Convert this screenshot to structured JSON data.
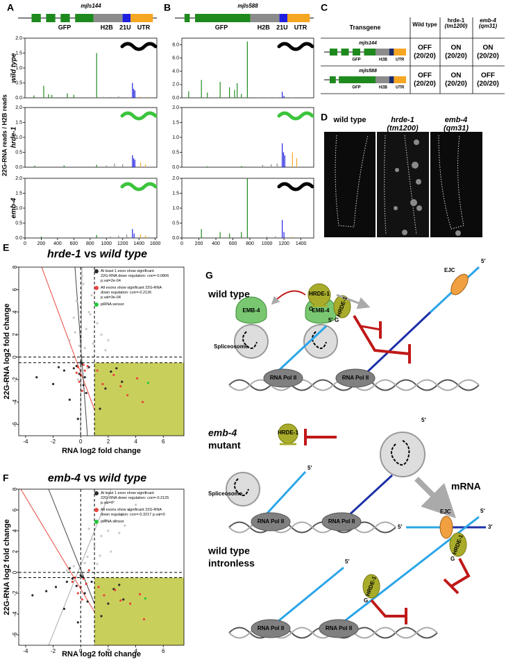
{
  "panel_labels": [
    "A",
    "B",
    "C",
    "D",
    "E",
    "F",
    "G"
  ],
  "panel_a": {
    "construct": "mjIs144",
    "y_axis_label": "22G-RNA reads / H2B reads",
    "series": [
      {
        "name": "GFP",
        "color": "#1e8a1e"
      },
      {
        "name": "H2B",
        "color": "#8c8c8c"
      },
      {
        "name": "21U",
        "color": "#1f1fe0"
      },
      {
        "name": "UTR",
        "color": "#f5a623"
      }
    ],
    "xlim": [
      0,
      1620
    ],
    "xticks": [
      0,
      200,
      400,
      600,
      800,
      1000,
      1200,
      1400,
      1600
    ],
    "rows": [
      {
        "label": "wild type",
        "worm_color": "#000000",
        "ylim": [
          0,
          2
        ],
        "yticks": [
          {
            "value": 0,
            "label": "0.0"
          },
          {
            "value": 0.5,
            "label": "0.5"
          },
          {
            "value": 1,
            "label": "1.0"
          },
          {
            "value": 1.5,
            "label": "1.5"
          },
          {
            "value": 2,
            "label": "2.0"
          }
        ],
        "data": [
          {
            "x": [
              110,
              230,
              290,
              330,
              520,
              600,
              880
            ],
            "values": [
              0.08,
              0.4,
              0.12,
              0.1,
              0.15,
              0.1,
              1.5
            ]
          },
          {
            "x": [
              960,
              1050,
              1150
            ],
            "values": [
              0.03,
              0.03,
              0.05
            ]
          },
          {
            "x": [
              1320,
              1335,
              1350
            ],
            "values": [
              0.5,
              0.3,
              0.25
            ]
          },
          {
            "x": [
              1420,
              1500
            ],
            "values": [
              0.04,
              0.03
            ]
          }
        ]
      },
      {
        "label": "hrde-1",
        "worm_color": "#3cc43c",
        "ylim": [
          0,
          2
        ],
        "yticks": [
          {
            "value": 0,
            "label": "0.0"
          },
          {
            "value": 0.5,
            "label": "0.5"
          },
          {
            "value": 1,
            "label": "1.0"
          },
          {
            "value": 1.5,
            "label": "1.5"
          },
          {
            "value": 2,
            "label": "2.0"
          }
        ],
        "data": [
          {
            "x": [
              120,
              480,
              880
            ],
            "values": [
              0.05,
              0.06,
              0.08
            ]
          },
          {
            "x": [
              1000,
              1100,
              1200
            ],
            "values": [
              0.06,
              0.12,
              0.1
            ]
          },
          {
            "x": [
              1320,
              1335,
              1350
            ],
            "values": [
              0.4,
              0.3,
              0.25
            ]
          },
          {
            "x": [
              1420,
              1480
            ],
            "values": [
              0.15,
              0.1
            ]
          }
        ]
      },
      {
        "label": "emb-4",
        "worm_color": "#3cc43c",
        "ylim": [
          0,
          2
        ],
        "yticks": [
          {
            "value": 0,
            "label": "0.0"
          },
          {
            "value": 0.5,
            "label": "0.5"
          },
          {
            "value": 1,
            "label": "1.0"
          },
          {
            "value": 1.5,
            "label": "1.5"
          },
          {
            "value": 2,
            "label": "2.0"
          }
        ],
        "data": [
          {
            "x": [
              200,
              880
            ],
            "values": [
              0.05,
              0.1
            ]
          },
          {
            "x": [
              1050,
              1150,
              1250
            ],
            "values": [
              0.05,
              0.08,
              0.12
            ]
          },
          {
            "x": [
              1320,
              1340
            ],
            "values": [
              0.3,
              0.15
            ]
          },
          {
            "x": [
              1420,
              1480
            ],
            "values": [
              0.12,
              0.08
            ]
          }
        ]
      }
    ]
  },
  "panel_b": {
    "construct": "mjIs588",
    "series": [
      {
        "name": "GFP",
        "color": "#1e8a1e"
      },
      {
        "name": "H2B",
        "color": "#8c8c8c"
      },
      {
        "name": "21U",
        "color": "#1f1fe0"
      },
      {
        "name": "UTR",
        "color": "#f5a623"
      }
    ],
    "xlim": [
      0,
      1550
    ],
    "xticks": [
      0,
      200,
      400,
      600,
      800,
      1000,
      1200,
      1400
    ],
    "rows": [
      {
        "worm_color": "#000000",
        "ylim": [
          0,
          9
        ],
        "yticks": [
          {
            "value": 0,
            "label": "0.0"
          },
          {
            "value": 2,
            "label": "2.0"
          },
          {
            "value": 4,
            "label": "4.0"
          },
          {
            "value": 6,
            "label": "6.0"
          },
          {
            "value": 8,
            "label": "8.0"
          }
        ],
        "data": [
          {
            "x": [
              80,
              230,
              300,
              450,
              560,
              620,
              650,
              700,
              770
            ],
            "values": [
              1.0,
              2.7,
              0.8,
              2.4,
              1.6,
              1.2,
              2.2,
              0.6,
              8.5
            ]
          },
          {
            "x": [
              900,
              1000,
              1100
            ],
            "values": [
              0.05,
              0.05,
              0.05
            ]
          },
          {
            "x": [
              1180,
              1200
            ],
            "values": [
              0.9,
              0.3
            ]
          },
          {
            "x": [
              1300
            ],
            "values": [
              0.05
            ]
          }
        ]
      },
      {
        "worm_color": "#3cc43c",
        "ylim": [
          0,
          2
        ],
        "yticks": [
          {
            "value": 0,
            "label": "0.0"
          },
          {
            "value": 0.5,
            "label": "0.5"
          },
          {
            "value": 1,
            "label": "1.0"
          },
          {
            "value": 1.5,
            "label": "1.5"
          },
          {
            "value": 2,
            "label": "2.0"
          }
        ],
        "data": [
          {
            "x": [
              300,
              700
            ],
            "values": [
              0.03,
              0.04
            ]
          },
          {
            "x": [
              950,
              1050,
              1120
            ],
            "values": [
              0.08,
              0.1,
              0.12
            ]
          },
          {
            "x": [
              1180,
              1195,
              1210
            ],
            "values": [
              0.8,
              0.5,
              0.4
            ]
          },
          {
            "x": [
              1300,
              1350
            ],
            "values": [
              0.5,
              0.3
            ]
          }
        ]
      },
      {
        "worm_color": "#000000",
        "ylim": [
          0,
          2
        ],
        "yticks": [
          {
            "value": 0,
            "label": "0.0"
          },
          {
            "value": 0.5,
            "label": "0.5"
          },
          {
            "value": 1,
            "label": "1.0"
          },
          {
            "value": 1.5,
            "label": "1.5"
          },
          {
            "value": 2,
            "label": "2.0"
          }
        ],
        "data": [
          {
            "x": [
              230,
              450,
              560,
              700,
              770
            ],
            "values": [
              0.3,
              0.2,
              0.15,
              0.2,
              2.0
            ]
          },
          {
            "x": [
              1000,
              1100
            ],
            "values": [
              0.05,
              0.06
            ]
          },
          {
            "x": [
              1180,
              1200
            ],
            "values": [
              0.6,
              0.2
            ]
          },
          {
            "x": [
              1300
            ],
            "values": [
              0.04
            ]
          }
        ]
      }
    ]
  },
  "panel_c": {
    "header": [
      "Transgene",
      "Wild type",
      "hrde-1",
      "(tm1200)",
      "emb-4",
      "(qm31)"
    ],
    "rows": [
      {
        "name": "mjIs144",
        "features": [
          "GFP",
          "H2B",
          "UTR"
        ],
        "cells": [
          {
            "state": "OFF",
            "count": "(20/20)",
            "color": "#000000"
          },
          {
            "state": "ON",
            "count": "(20/20)",
            "color": "#1a9a1a"
          },
          {
            "state": "ON",
            "count": "(20/20)",
            "color": "#1a9a1a"
          }
        ]
      },
      {
        "name": "mjIs588",
        "features": [
          "GFP",
          "H2B",
          "UTR"
        ],
        "cells": [
          {
            "state": "OFF",
            "count": "(20/20)",
            "color": "#000000"
          },
          {
            "state": "ON",
            "count": "(20/20)",
            "color": "#1a9a1a"
          },
          {
            "state": "OFF",
            "count": "(20/20)",
            "color": "#000000"
          }
        ]
      }
    ]
  },
  "panel_d": {
    "labels": [
      [
        "wild type"
      ],
      [
        "hrde-1",
        "(tm1200)"
      ],
      [
        "emb-4",
        "(qm31)"
      ]
    ]
  },
  "panel_e": {
    "title": [
      "hrde-1",
      " vs ",
      "wild type"
    ],
    "x_label": "RNA log2 fold change",
    "y_label": "22G-RNA log2 fold change",
    "xlim": [
      -4.5,
      7.5
    ],
    "ylim": [
      -7,
      8
    ],
    "xticks": [
      -4,
      -2,
      0,
      2,
      4,
      6
    ],
    "yticks": [
      -6,
      -4,
      -2,
      0,
      2,
      4,
      6,
      8
    ],
    "cutoffs_x": [
      0,
      1
    ],
    "cutoffs_y": [
      0,
      -0.5
    ],
    "highlight_color": "#c9cf5b",
    "series": [
      {
        "color": "#c8c8c8",
        "x": [
          -0.5,
          -0.3,
          0.2,
          0.4,
          0.6,
          -0.8,
          1.2,
          1.5,
          0.1,
          -0.1,
          0.3,
          0.8,
          -0.4,
          2.0,
          0.5,
          0.9,
          -0.2,
          0.7,
          1.8,
          0.0
        ],
        "values": [
          3.5,
          5.0,
          6.5,
          2.5,
          4.0,
          1.5,
          3.0,
          2.0,
          7.2,
          1.0,
          0.8,
          5.5,
          2.2,
          1.5,
          -1.0,
          1.2,
          -2.0,
          3.8,
          0.6,
          4.5
        ]
      },
      {
        "name": "At least 1 exon show significant 22G-RNA down regulation: corr=-0.0806 p.val=2e-04",
        "color": "#2a2a2a",
        "x": [
          -0.3,
          -0.1,
          0.1,
          0.2,
          -0.5,
          0.4,
          -1.2,
          -2.0,
          -3.2,
          0.6,
          1.4,
          2.2,
          3.0,
          -0.2,
          0.0,
          0.3,
          -0.8,
          1.8,
          2.6,
          -1.6
        ],
        "values": [
          -0.8,
          -1.5,
          -0.6,
          -2.5,
          -1.0,
          -3.2,
          -1.2,
          -2.4,
          -1.8,
          -0.9,
          -4.6,
          -1.3,
          -2.2,
          -5.5,
          -0.5,
          -1.8,
          -3.8,
          -2.8,
          -1.0,
          -0.9
        ]
      },
      {
        "name": "All exons show significant 22G-RNA down regulation: corr=-0.2126 p.val=3e-04",
        "color": "#e8453c",
        "x": [
          -0.2,
          0.0,
          0.2,
          -0.1,
          0.3,
          0.1,
          1.6,
          2.4,
          3.4,
          4.1,
          4.5,
          2.9,
          1.2,
          -0.3,
          0.5
        ],
        "values": [
          -0.9,
          -1.6,
          -0.7,
          -2.2,
          -1.2,
          -3.0,
          -2.4,
          -1.6,
          -3.4,
          -1.9,
          -4.0,
          -2.6,
          -1.2,
          -1.4,
          -0.8
        ]
      },
      {
        "name": "piRNA sensor",
        "color": "#22c93a",
        "x": [
          4.9
        ],
        "values": [
          -2.3
        ]
      }
    ]
  },
  "panel_f": {
    "title": [
      "emb-4",
      " vs ",
      "wild type"
    ],
    "x_label": "RNA log2 fold change",
    "y_label": "22G-RNA log2 fold change",
    "xlim": [
      -4.5,
      7.5
    ],
    "ylim": [
      -7,
      8
    ],
    "xticks": [
      -4,
      -2,
      0,
      2,
      4,
      6
    ],
    "yticks": [
      -6,
      -4,
      -2,
      0,
      2,
      4,
      6,
      8
    ],
    "cutoffs_x": [
      0,
      1
    ],
    "cutoffs_y": [
      0,
      -0.5
    ],
    "highlight_color": "#c9cf5b",
    "series": [
      {
        "color": "#c8c8c8",
        "x": [
          0.5,
          1.0,
          1.5,
          2.0,
          2.5,
          3.0,
          3.5,
          1.2,
          0.8,
          2.2,
          2.8,
          -0.5,
          -1.0,
          1.8,
          4.0,
          0.3,
          3.2,
          2.4,
          1.4,
          0.6
        ],
        "values": [
          1.5,
          2.5,
          3.5,
          4.0,
          5.0,
          5.5,
          6.0,
          0.8,
          3.2,
          2.0,
          3.8,
          0.6,
          0.2,
          5.0,
          6.5,
          0.9,
          4.5,
          6.8,
          1.6,
          4.2
        ]
      },
      {
        "name": "At least 1 exon show significant 22G-RNA down regulation: corr=-0.2125 p.val=0",
        "color": "#2a2a2a",
        "x": [
          -0.6,
          -0.3,
          0.1,
          0.3,
          -1.0,
          0.5,
          -1.8,
          -2.5,
          -3.5,
          0.8,
          1.5,
          2.4,
          3.1,
          -0.2,
          0.0,
          0.4,
          -1.2,
          2.0,
          2.8,
          -0.8
        ],
        "values": [
          -0.6,
          -1.3,
          -0.4,
          -2.0,
          -0.9,
          -2.8,
          -1.4,
          -1.8,
          -2.2,
          -0.9,
          -4.2,
          -1.6,
          -2.6,
          -4.8,
          -0.3,
          -1.1,
          -3.5,
          -3.0,
          -1.2,
          0.4
        ]
      },
      {
        "name": "All exons show significant 22G-RNA down regulation: corr=-0.3217 p.val=0",
        "color": "#e8453c",
        "x": [
          -0.4,
          0.0,
          0.2,
          -0.2,
          0.4,
          0.1,
          1.7,
          2.5,
          3.6,
          4.3,
          4.6,
          2.9,
          1.3,
          -0.6,
          0.6
        ],
        "values": [
          -0.5,
          -1.4,
          -0.6,
          -2.0,
          -1.1,
          -2.6,
          -2.2,
          -1.7,
          -3.0,
          -2.1,
          -4.5,
          -2.7,
          -1.4,
          -0.9,
          0.2
        ]
      },
      {
        "name": "piRNA sensor",
        "color": "#22c93a",
        "x": [
          4.7
        ],
        "values": [
          -2.5
        ]
      }
    ]
  },
  "panel_g": {
    "wild_type": {
      "title": "wild type",
      "emb4": [
        "EMB-4",
        "EMB-4"
      ],
      "hrde1": [
        "HRDE-1",
        "HRDE-1"
      ],
      "g": [
        "G",
        "G"
      ],
      "ejc": "EJC",
      "five_prime": [
        "5′",
        "5′"
      ],
      "spliceosome": "Spliceosome",
      "pol": [
        "RNA Pol II",
        "RNA Pol II"
      ]
    },
    "mutant": {
      "title": [
        "emb-4",
        "mutant"
      ],
      "hrde1": "HRDE-1",
      "spliceosome": "Spliceosome",
      "pol": [
        "RNA Pol II",
        "RNA Pol II"
      ],
      "five_prime": [
        "5′",
        "5′",
        "5′"
      ],
      "mrna": "mRNA",
      "ejc": "EJC",
      "three_prime": "3′"
    },
    "intronless": {
      "title": [
        "wild type",
        "intronless"
      ],
      "hrde1": [
        "HRDE-1",
        "HRDE-1"
      ],
      "g": [
        "G",
        "G"
      ],
      "five_prime": [
        "5′",
        "5′"
      ],
      "pol": [
        "RNA Pol II",
        "RNA Pol II"
      ]
    }
  }
}
